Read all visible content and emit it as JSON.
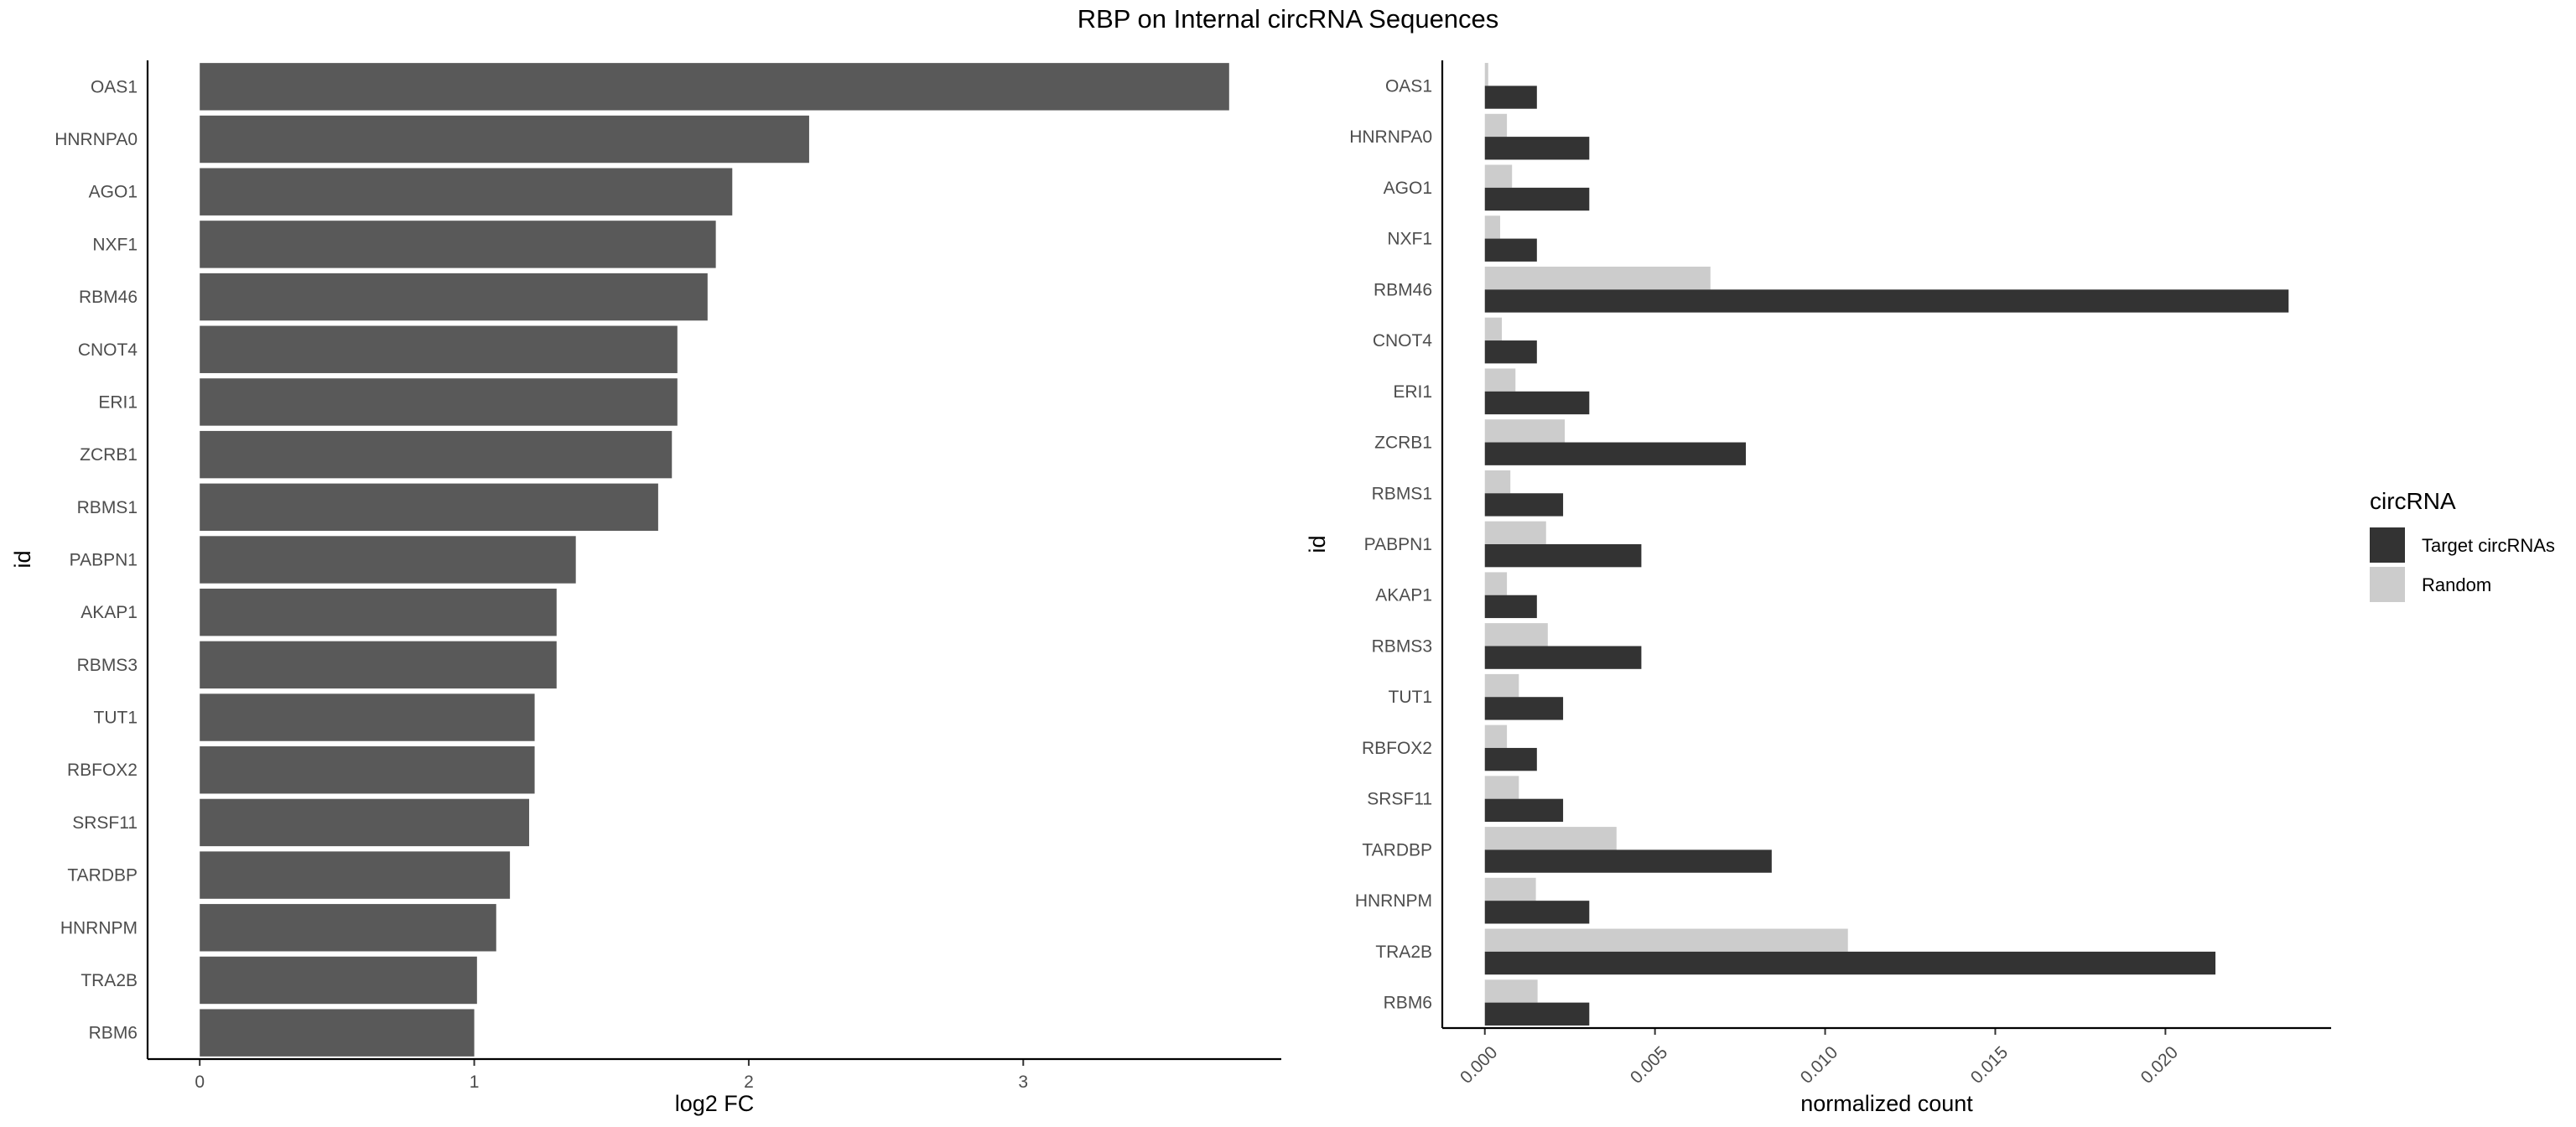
{
  "figure_title": "RBP on Internal circRNA Sequences",
  "colors": {
    "left_bar": "#595959",
    "target": "#333333",
    "random": "#cccccc"
  },
  "chart_data": [
    {
      "type": "bar",
      "orientation": "horizontal",
      "categories": [
        "OAS1",
        "HNRNPA0",
        "AGO1",
        "NXF1",
        "RBM46",
        "CNOT4",
        "ERI1",
        "ZCRB1",
        "RBMS1",
        "PABPN1",
        "AKAP1",
        "RBMS3",
        "TUT1",
        "RBFOX2",
        "SRSF11",
        "TARDBP",
        "HNRNPM",
        "TRA2B",
        "RBM6"
      ],
      "values": [
        3.75,
        2.22,
        1.94,
        1.88,
        1.85,
        1.74,
        1.74,
        1.72,
        1.67,
        1.37,
        1.3,
        1.3,
        1.22,
        1.22,
        1.2,
        1.13,
        1.08,
        1.01,
        1.0
      ],
      "xlabel": "log2 FC",
      "ylabel": "id",
      "xlim": [
        -0.19,
        3.94
      ],
      "xticks": [
        "0",
        "1",
        "2",
        "3"
      ],
      "grid": false
    },
    {
      "type": "bar",
      "orientation": "horizontal",
      "grouped": true,
      "categories": [
        "OAS1",
        "HNRNPA0",
        "AGO1",
        "NXF1",
        "RBM46",
        "CNOT4",
        "ERI1",
        "ZCRB1",
        "RBMS1",
        "PABPN1",
        "AKAP1",
        "RBMS3",
        "TUT1",
        "RBFOX2",
        "SRSF11",
        "TARDBP",
        "HNRNPM",
        "TRA2B",
        "RBM6"
      ],
      "series": [
        {
          "name": "Target circRNAs",
          "values": [
            0.00153,
            0.00307,
            0.00307,
            0.00153,
            0.02362,
            0.00153,
            0.00307,
            0.00767,
            0.0023,
            0.0046,
            0.00153,
            0.0046,
            0.0023,
            0.00153,
            0.0023,
            0.00843,
            0.00307,
            0.02147,
            0.00307
          ]
        },
        {
          "name": "Random",
          "values": [
            0.0001,
            0.00065,
            0.0008,
            0.00045,
            0.00663,
            0.0005,
            0.0009,
            0.00235,
            0.00075,
            0.0018,
            0.00065,
            0.00185,
            0.001,
            0.00065,
            0.001,
            0.00387,
            0.0015,
            0.01067,
            0.00155
          ]
        }
      ],
      "xlabel": "normalized count",
      "ylabel": "id",
      "xlim": [
        -0.00125,
        0.02487
      ],
      "xticks": [
        "0.000",
        "0.005",
        "0.010",
        "0.015",
        "0.020"
      ],
      "grid": false,
      "legend": {
        "title": "circRNA",
        "position": "right"
      }
    }
  ]
}
